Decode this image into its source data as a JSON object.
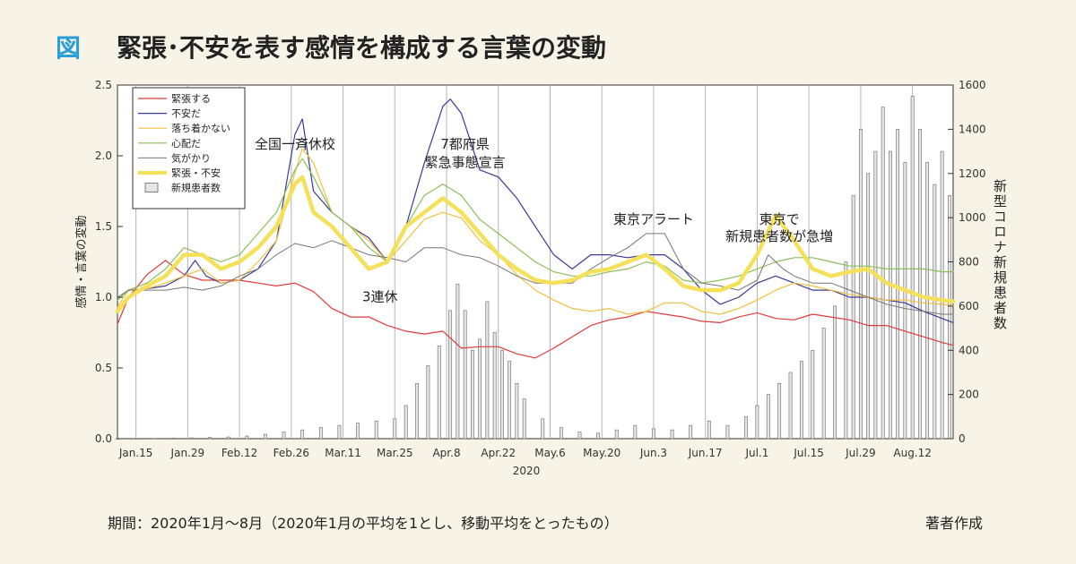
{
  "header": {
    "mark": "図",
    "title": "緊張･不安を表す感情を構成する言葉の変動"
  },
  "footer": {
    "note": "期間：2020年1月〜8月（2020年1月の平均を1とし、移動平均をとったもの）",
    "credit": "著者作成"
  },
  "colors": {
    "background": "#f7f3e6",
    "title_mark": "#2a9fd6"
  },
  "chart_data": {
    "type": "line",
    "xlabel": "2020",
    "ylabel": "感情・言葉の変動",
    "ylabel_right": "新型コロナ新規患者数",
    "ylim": [
      0,
      2.5
    ],
    "ylim_right": [
      0,
      1600
    ],
    "yticks": [
      "0.0",
      "0.5",
      "1.0",
      "1.5",
      "2.0",
      "2.5"
    ],
    "yticks_right": [
      "0",
      "200",
      "400",
      "600",
      "800",
      "1000",
      "1200",
      "1400",
      "1600"
    ],
    "x_day_range": [
      10,
      236
    ],
    "xticks": [
      {
        "label": "Jan.15",
        "day": 15
      },
      {
        "label": "Jan.29",
        "day": 29
      },
      {
        "label": "Feb.12",
        "day": 43
      },
      {
        "label": "Feb.26",
        "day": 57
      },
      {
        "label": "Mar.11",
        "day": 71
      },
      {
        "label": "Mar.25",
        "day": 85
      },
      {
        "label": "Apr.8",
        "day": 99
      },
      {
        "label": "Apr.22",
        "day": 113
      },
      {
        "label": "May.6",
        "day": 127
      },
      {
        "label": "May.20",
        "day": 141
      },
      {
        "label": "Jun.3",
        "day": 155
      },
      {
        "label": "Jun.17",
        "day": 169
      },
      {
        "label": "Jul.1",
        "day": 183
      },
      {
        "label": "Jul.15",
        "day": 197
      },
      {
        "label": "Jul.29",
        "day": 211
      },
      {
        "label": "Aug.12",
        "day": 225
      }
    ],
    "legend_position": "top-left",
    "grid": true,
    "series": [
      {
        "name": "緊張する",
        "color": "#e03a3a",
        "width": 1.2,
        "x": [
          10,
          13,
          18,
          23,
          28,
          33,
          38,
          43,
          48,
          53,
          58,
          63,
          68,
          73,
          78,
          83,
          88,
          93,
          98,
          103,
          108,
          113,
          118,
          123,
          128,
          133,
          138,
          143,
          148,
          153,
          158,
          163,
          168,
          173,
          178,
          183,
          188,
          193,
          198,
          203,
          208,
          213,
          218,
          223,
          228,
          233,
          236
        ],
        "y": [
          0.81,
          1.0,
          1.16,
          1.26,
          1.16,
          1.12,
          1.12,
          1.12,
          1.1,
          1.08,
          1.1,
          1.04,
          0.92,
          0.86,
          0.86,
          0.8,
          0.76,
          0.74,
          0.76,
          0.64,
          0.65,
          0.65,
          0.6,
          0.57,
          0.64,
          0.72,
          0.8,
          0.84,
          0.86,
          0.9,
          0.88,
          0.86,
          0.83,
          0.82,
          0.86,
          0.89,
          0.85,
          0.84,
          0.88,
          0.86,
          0.84,
          0.8,
          0.8,
          0.76,
          0.72,
          0.68,
          0.66
        ]
      },
      {
        "name": "不安だ",
        "color": "#3a3a9a",
        "width": 1.2,
        "x": [
          10,
          13,
          18,
          23,
          28,
          31,
          34,
          38,
          43,
          48,
          53,
          58,
          60,
          63,
          68,
          73,
          78,
          83,
          88,
          93,
          98,
          100,
          103,
          108,
          113,
          118,
          123,
          128,
          133,
          138,
          143,
          148,
          153,
          158,
          163,
          168,
          173,
          178,
          183,
          188,
          193,
          198,
          203,
          208,
          213,
          218,
          223,
          228,
          233,
          236
        ],
        "y": [
          0.98,
          1.05,
          1.06,
          1.08,
          1.15,
          1.26,
          1.15,
          1.1,
          1.12,
          1.2,
          1.4,
          2.15,
          2.26,
          1.75,
          1.6,
          1.5,
          1.42,
          1.25,
          1.5,
          1.95,
          2.35,
          2.4,
          2.3,
          1.9,
          1.85,
          1.7,
          1.5,
          1.3,
          1.2,
          1.3,
          1.3,
          1.28,
          1.3,
          1.3,
          1.2,
          1.05,
          0.95,
          1.0,
          1.1,
          1.15,
          1.1,
          1.05,
          1.05,
          1.0,
          1.0,
          0.98,
          0.96,
          0.9,
          0.85,
          0.82
        ]
      },
      {
        "name": "落ち着かない",
        "color": "#f0c040",
        "width": 1.2,
        "x": [
          10,
          13,
          18,
          23,
          28,
          33,
          38,
          43,
          48,
          53,
          58,
          60,
          63,
          68,
          73,
          78,
          83,
          88,
          93,
          98,
          103,
          108,
          113,
          118,
          123,
          128,
          133,
          138,
          143,
          148,
          153,
          158,
          163,
          168,
          173,
          178,
          183,
          188,
          193,
          198,
          203,
          208,
          213,
          218,
          223,
          228,
          233,
          236
        ],
        "y": [
          0.93,
          1.05,
          1.06,
          1.1,
          1.15,
          1.2,
          1.1,
          1.12,
          1.25,
          1.4,
          1.88,
          2.05,
          1.95,
          1.6,
          1.5,
          1.4,
          1.25,
          1.4,
          1.55,
          1.6,
          1.56,
          1.4,
          1.3,
          1.16,
          1.05,
          0.98,
          0.92,
          0.9,
          0.92,
          0.88,
          0.9,
          0.96,
          0.96,
          0.9,
          0.88,
          0.92,
          0.98,
          1.05,
          1.1,
          1.08,
          1.05,
          1.02,
          1.0,
          0.98,
          0.98,
          0.96,
          0.95,
          0.94
        ]
      },
      {
        "name": "心配だ",
        "color": "#8abf5a",
        "width": 1.2,
        "x": [
          10,
          13,
          18,
          23,
          28,
          33,
          38,
          43,
          48,
          53,
          58,
          60,
          63,
          68,
          73,
          78,
          83,
          88,
          93,
          98,
          103,
          108,
          113,
          118,
          123,
          128,
          133,
          138,
          143,
          148,
          153,
          158,
          163,
          168,
          173,
          178,
          183,
          188,
          193,
          198,
          203,
          208,
          213,
          218,
          223,
          228,
          233,
          236
        ],
        "y": [
          0.98,
          1.05,
          1.1,
          1.2,
          1.35,
          1.3,
          1.25,
          1.3,
          1.45,
          1.6,
          1.9,
          1.98,
          1.85,
          1.6,
          1.5,
          1.35,
          1.25,
          1.5,
          1.72,
          1.8,
          1.72,
          1.55,
          1.45,
          1.35,
          1.25,
          1.18,
          1.15,
          1.15,
          1.18,
          1.2,
          1.25,
          1.22,
          1.12,
          1.1,
          1.12,
          1.15,
          1.2,
          1.25,
          1.28,
          1.28,
          1.25,
          1.22,
          1.22,
          1.2,
          1.2,
          1.2,
          1.18,
          1.18
        ]
      },
      {
        "name": "気がかり",
        "color": "#777777",
        "width": 1.0,
        "x": [
          10,
          13,
          18,
          23,
          28,
          33,
          38,
          43,
          48,
          53,
          58,
          63,
          68,
          73,
          78,
          83,
          88,
          93,
          98,
          103,
          108,
          113,
          118,
          123,
          128,
          133,
          138,
          143,
          148,
          153,
          158,
          163,
          168,
          173,
          178,
          183,
          186,
          190,
          193,
          198,
          203,
          208,
          213,
          218,
          223,
          228,
          233,
          236
        ],
        "y": [
          1.0,
          1.05,
          1.05,
          1.05,
          1.07,
          1.05,
          1.08,
          1.15,
          1.2,
          1.3,
          1.38,
          1.35,
          1.4,
          1.35,
          1.3,
          1.28,
          1.25,
          1.35,
          1.35,
          1.3,
          1.28,
          1.22,
          1.15,
          1.1,
          1.1,
          1.1,
          1.2,
          1.28,
          1.35,
          1.45,
          1.45,
          1.2,
          1.1,
          1.08,
          1.05,
          1.12,
          1.3,
          1.2,
          1.15,
          1.1,
          1.1,
          1.05,
          1.0,
          0.95,
          0.92,
          0.9,
          0.88,
          0.88
        ]
      },
      {
        "name": "緊張・不安",
        "color": "#f5e05a",
        "width": 4.5,
        "x": [
          10,
          13,
          18,
          23,
          28,
          33,
          38,
          43,
          48,
          53,
          58,
          60,
          63,
          68,
          73,
          78,
          83,
          88,
          93,
          98,
          103,
          108,
          113,
          118,
          123,
          128,
          133,
          138,
          143,
          148,
          153,
          158,
          163,
          168,
          173,
          178,
          183,
          188,
          193,
          198,
          203,
          208,
          213,
          218,
          223,
          228,
          233,
          236
        ],
        "y": [
          0.9,
          1.0,
          1.08,
          1.15,
          1.3,
          1.3,
          1.2,
          1.25,
          1.35,
          1.5,
          1.8,
          1.85,
          1.6,
          1.5,
          1.35,
          1.2,
          1.25,
          1.5,
          1.6,
          1.7,
          1.6,
          1.45,
          1.3,
          1.2,
          1.12,
          1.1,
          1.12,
          1.18,
          1.2,
          1.25,
          1.3,
          1.2,
          1.08,
          1.05,
          1.05,
          1.1,
          1.3,
          1.58,
          1.4,
          1.2,
          1.15,
          1.18,
          1.2,
          1.1,
          1.05,
          1.0,
          0.98,
          0.97
        ]
      }
    ],
    "bars": {
      "name": "新規患者数",
      "color": "#e6e6e6",
      "stroke": "#666666",
      "x": [
        10,
        15,
        20,
        25,
        30,
        35,
        40,
        45,
        50,
        55,
        60,
        65,
        70,
        75,
        80,
        85,
        88,
        91,
        94,
        97,
        100,
        102,
        104,
        106,
        108,
        110,
        112,
        114,
        116,
        118,
        120,
        125,
        130,
        135,
        140,
        145,
        150,
        155,
        160,
        165,
        170,
        175,
        180,
        183,
        186,
        189,
        192,
        195,
        198,
        201,
        204,
        207,
        209,
        211,
        213,
        215,
        217,
        219,
        221,
        223,
        225,
        227,
        229,
        231,
        233,
        235
      ],
      "v": [
        0,
        0,
        1,
        3,
        4,
        6,
        8,
        12,
        20,
        30,
        40,
        50,
        60,
        70,
        80,
        90,
        150,
        250,
        330,
        420,
        580,
        700,
        580,
        400,
        450,
        620,
        480,
        400,
        350,
        250,
        180,
        90,
        50,
        30,
        25,
        40,
        60,
        45,
        40,
        60,
        80,
        60,
        100,
        150,
        200,
        250,
        300,
        350,
        400,
        500,
        600,
        800,
        1100,
        1400,
        1200,
        1300,
        1500,
        1300,
        1400,
        1250,
        1550,
        1400,
        1250,
        1150,
        1300,
        1100
      ]
    },
    "annotations": [
      {
        "text": "全国一斉休校",
        "day": 58,
        "y": 2.05
      },
      {
        "text": "7都府県",
        "day": 104,
        "y": 2.05
      },
      {
        "text": "緊急事態宣言",
        "day": 104,
        "y": 1.92
      },
      {
        "text": "3連休",
        "day": 81,
        "y": 0.97
      },
      {
        "text": "東京アラート",
        "day": 155,
        "y": 1.52
      },
      {
        "text": "東京で",
        "day": 189,
        "y": 1.52
      },
      {
        "text": "新規患者数が急増",
        "day": 189,
        "y": 1.4
      }
    ]
  }
}
